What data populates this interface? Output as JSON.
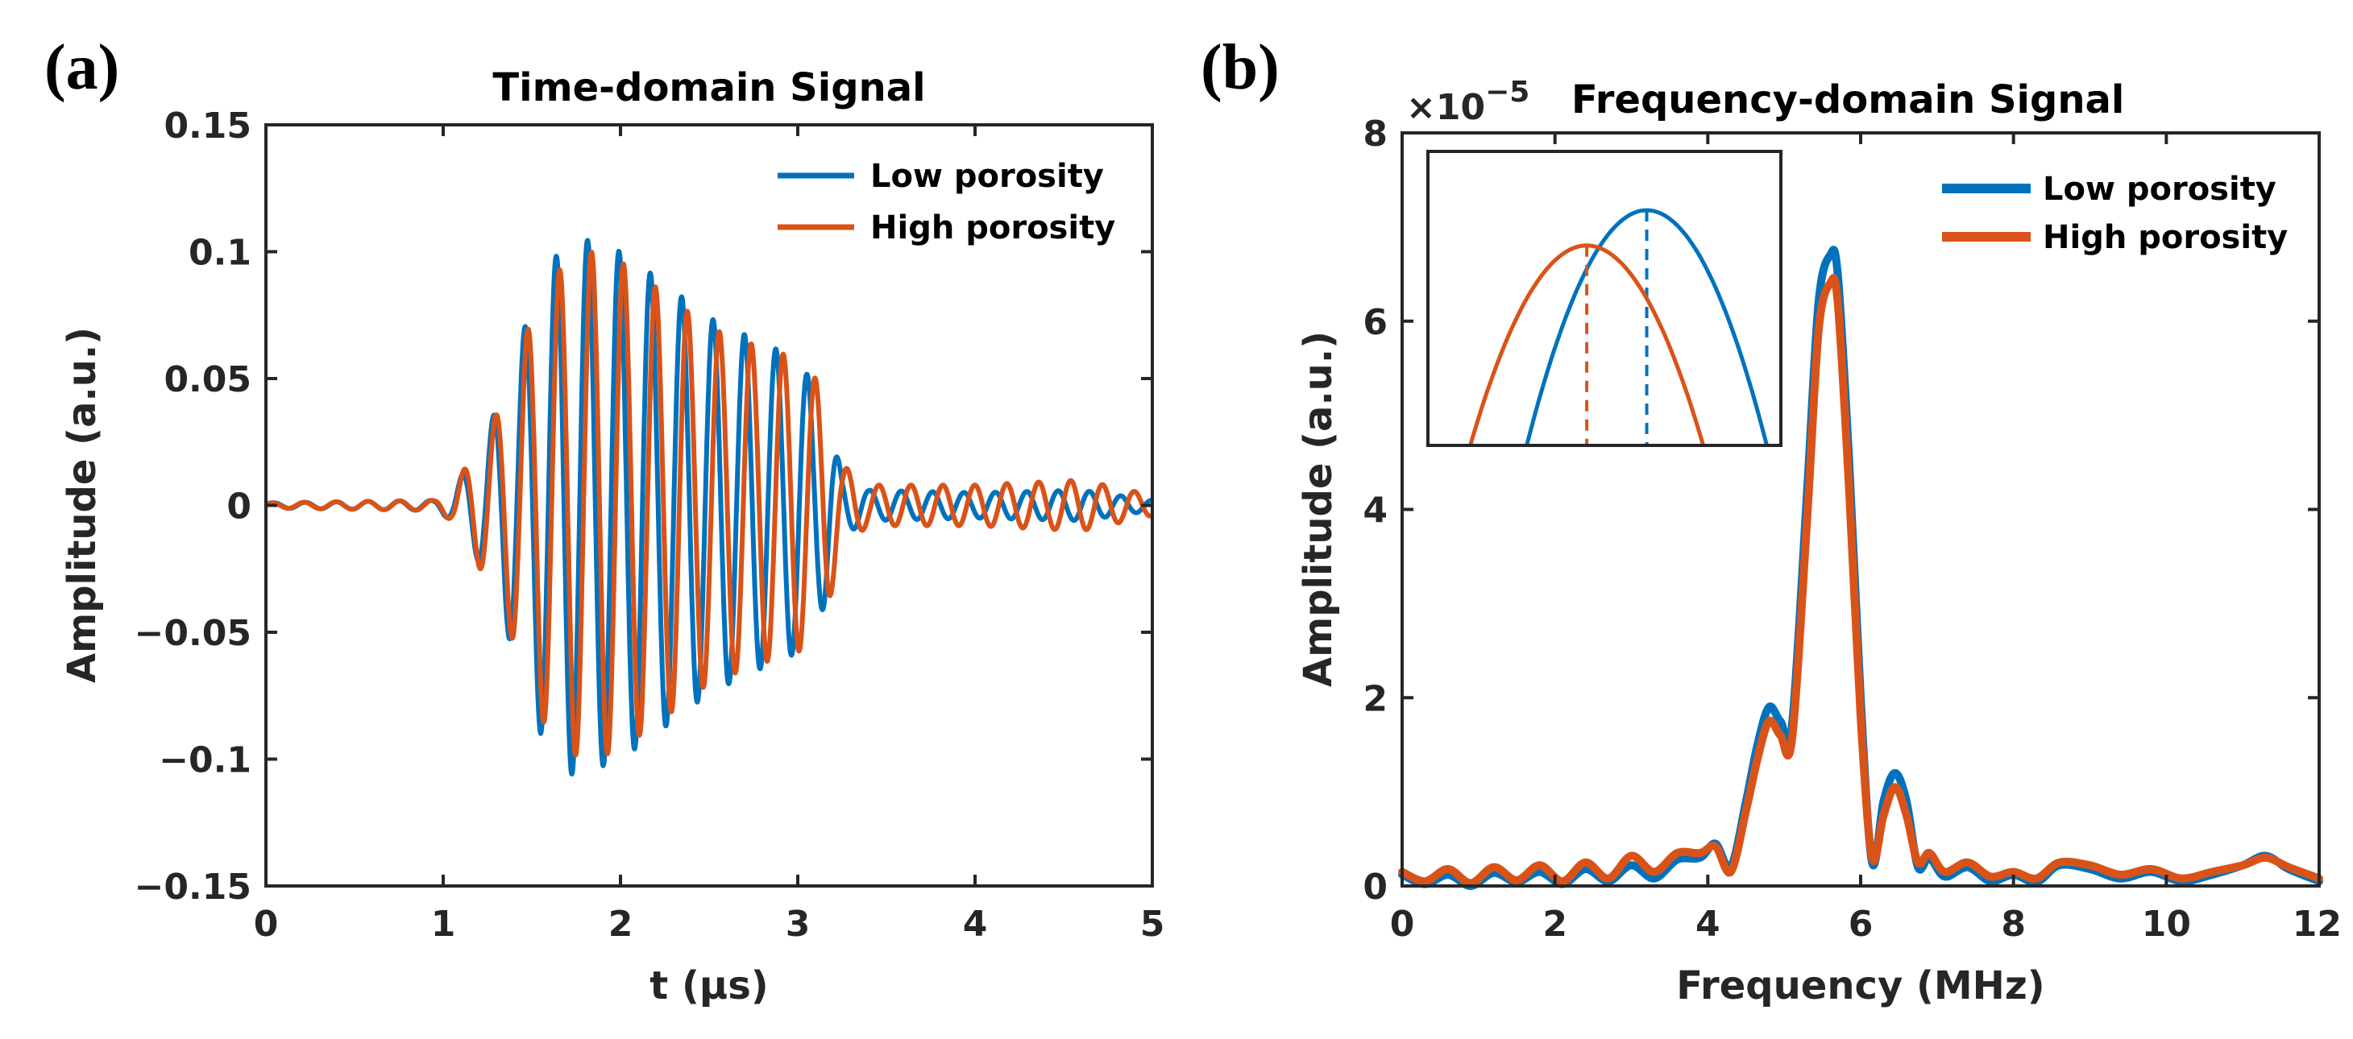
{
  "chart_data": [
    {
      "panel_label": "(a)",
      "type": "line",
      "title": "Time-domain Signal",
      "xlabel": "t (µs)",
      "ylabel": "Amplitude (a.u.)",
      "xlim": [
        0,
        5
      ],
      "ylim": [
        -0.15,
        0.15
      ],
      "x_ticks": [
        0,
        1,
        2,
        3,
        4,
        5
      ],
      "x_tick_labels": [
        "0",
        "1",
        "2",
        "3",
        "4",
        "5"
      ],
      "y_ticks": [
        -0.15,
        -0.1,
        -0.05,
        0,
        0.05,
        0.1,
        0.15
      ],
      "y_tick_labels": [
        "−0.15",
        "−0.1",
        "−0.05",
        "0",
        "0.05",
        "0.1",
        "0.15"
      ],
      "grid": false,
      "legend_position": "top-right",
      "series": [
        {
          "name": "Low porosity",
          "color": "#0072BD",
          "envelope_t": [
            0,
            0.95,
            1.05,
            1.2,
            1.3,
            1.45,
            1.55,
            1.72,
            1.85,
            2.0,
            2.2,
            2.5,
            2.8,
            3.0,
            3.15,
            3.25,
            3.4,
            4.0,
            4.6,
            5.0
          ],
          "envelope_amp": [
            0.001,
            0.002,
            0.006,
            0.022,
            0.038,
            0.068,
            0.09,
            0.106,
            0.104,
            0.1,
            0.09,
            0.074,
            0.064,
            0.058,
            0.04,
            0.012,
            0.006,
            0.005,
            0.006,
            0.002
          ],
          "carrier_mhz": 5.65
        },
        {
          "name": "High porosity",
          "color": "#D95319",
          "envelope_t": [
            0,
            0.95,
            1.05,
            1.2,
            1.3,
            1.45,
            1.55,
            1.72,
            1.85,
            2.0,
            2.2,
            2.5,
            2.8,
            3.0,
            3.15,
            3.25,
            3.4,
            4.0,
            4.6,
            5.0
          ],
          "envelope_amp": [
            0.001,
            0.002,
            0.006,
            0.024,
            0.036,
            0.064,
            0.084,
            0.098,
            0.1,
            0.096,
            0.086,
            0.07,
            0.062,
            0.058,
            0.046,
            0.016,
            0.008,
            0.008,
            0.01,
            0.004
          ],
          "carrier_mhz": 5.55
        }
      ]
    },
    {
      "panel_label": "(b)",
      "type": "line",
      "title": "Frequency-domain Signal",
      "xlabel": "Frequency (MHz)",
      "ylabel": "Amplitude (a.u.)",
      "y_scale_label": "×10",
      "y_scale_exponent": "−5",
      "xlim": [
        0,
        12
      ],
      "ylim": [
        0,
        8
      ],
      "x_ticks": [
        0,
        2,
        4,
        6,
        8,
        10,
        12
      ],
      "x_tick_labels": [
        "0",
        "2",
        "4",
        "6",
        "8",
        "10",
        "12"
      ],
      "y_ticks": [
        0,
        2,
        4,
        6,
        8
      ],
      "y_tick_labels": [
        "0",
        "2",
        "4",
        "6",
        "8"
      ],
      "grid": false,
      "legend_position": "top-right",
      "series": [
        {
          "name": "Low porosity",
          "color": "#0072BD",
          "x": [
            0,
            0.3,
            0.6,
            0.9,
            1.2,
            1.5,
            1.8,
            2.1,
            2.4,
            2.7,
            3.0,
            3.3,
            3.6,
            3.9,
            4.1,
            4.3,
            4.5,
            4.65,
            4.8,
            4.95,
            5.1,
            5.3,
            5.45,
            5.6,
            5.7,
            5.85,
            6.0,
            6.15,
            6.3,
            6.45,
            6.6,
            6.75,
            6.9,
            7.1,
            7.4,
            7.7,
            8.0,
            8.3,
            8.6,
            9.0,
            9.4,
            9.8,
            10.2,
            10.6,
            11.0,
            11.3,
            11.6,
            12.0
          ],
          "y": [
            0.12,
            0.02,
            0.12,
            0.0,
            0.14,
            0.04,
            0.15,
            0.02,
            0.18,
            0.05,
            0.22,
            0.08,
            0.28,
            0.3,
            0.45,
            0.2,
            0.9,
            1.5,
            1.9,
            1.75,
            1.7,
            4.2,
            6.2,
            6.7,
            6.5,
            4.5,
            2.0,
            0.25,
            0.9,
            1.2,
            0.9,
            0.2,
            0.3,
            0.1,
            0.2,
            0.05,
            0.12,
            0.04,
            0.22,
            0.18,
            0.08,
            0.15,
            0.05,
            0.12,
            0.22,
            0.32,
            0.18,
            0.05
          ]
        },
        {
          "name": "High porosity",
          "color": "#D95319",
          "x": [
            0,
            0.3,
            0.6,
            0.9,
            1.2,
            1.5,
            1.8,
            2.1,
            2.4,
            2.7,
            3.0,
            3.3,
            3.6,
            3.9,
            4.1,
            4.3,
            4.5,
            4.65,
            4.8,
            4.95,
            5.1,
            5.3,
            5.45,
            5.6,
            5.7,
            5.85,
            6.0,
            6.15,
            6.3,
            6.45,
            6.6,
            6.75,
            6.9,
            7.1,
            7.4,
            7.7,
            8.0,
            8.3,
            8.6,
            9.0,
            9.4,
            9.8,
            10.2,
            10.6,
            11.0,
            11.3,
            11.6,
            12.0
          ],
          "y": [
            0.15,
            0.05,
            0.18,
            0.03,
            0.2,
            0.06,
            0.22,
            0.05,
            0.25,
            0.08,
            0.32,
            0.15,
            0.35,
            0.35,
            0.42,
            0.15,
            0.8,
            1.35,
            1.75,
            1.6,
            1.55,
            3.9,
            5.9,
            6.4,
            6.2,
            4.2,
            1.8,
            0.3,
            0.75,
            1.05,
            0.75,
            0.25,
            0.35,
            0.15,
            0.25,
            0.1,
            0.15,
            0.08,
            0.25,
            0.22,
            0.12,
            0.18,
            0.08,
            0.15,
            0.22,
            0.3,
            0.2,
            0.08
          ]
        }
      ],
      "inset": {
        "description_type": "zoomed peak",
        "series": [
          {
            "name": "Low porosity",
            "color": "#0072BD",
            "peak_position": 0.62,
            "peak_height": 0.8,
            "half_width": 0.34
          },
          {
            "name": "High porosity",
            "color": "#D95319",
            "peak_position": 0.45,
            "peak_height": 0.68,
            "half_width": 0.33
          }
        ]
      }
    }
  ]
}
